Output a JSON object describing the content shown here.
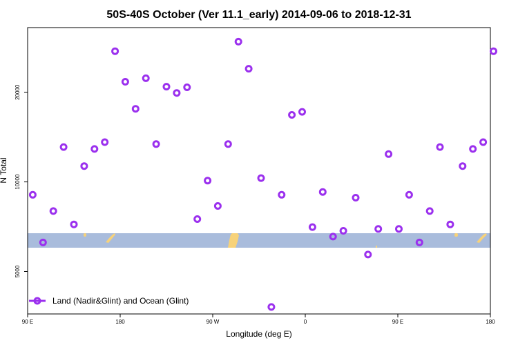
{
  "chart_data": {
    "type": "scatter",
    "title": "50S-40S October (Ver 11.1_early)   2014-09-06 to 2018-12-31",
    "xlabel": "Longitude (deg E)",
    "ylabel": "N Total",
    "x_tick_labels": [
      "90 E",
      "180",
      "90 W",
      "0",
      "90 E",
      "180"
    ],
    "y_tick_labels": [
      "5000",
      "10000",
      "20000"
    ],
    "y_scale": "log",
    "ylim": [
      3600,
      33000
    ],
    "grid": false,
    "legend_position": "bottom-left",
    "series": [
      {
        "name": "Land (Nadir&Glint) and Ocean (Glint)",
        "color": "#9b30ee",
        "points": [
          [
            95,
            9050
          ],
          [
            105,
            6260
          ],
          [
            115,
            7980
          ],
          [
            125,
            13100
          ],
          [
            135,
            7200
          ],
          [
            145,
            11300
          ],
          [
            155,
            12900
          ],
          [
            165,
            13600
          ],
          [
            175,
            27500
          ],
          [
            185,
            21700
          ],
          [
            195,
            17600
          ],
          [
            205,
            22300
          ],
          [
            215,
            13400
          ],
          [
            225,
            20900
          ],
          [
            235,
            19900
          ],
          [
            245,
            20800
          ],
          [
            255,
            7500
          ],
          [
            265,
            10100
          ],
          [
            275,
            8300
          ],
          [
            285,
            13400
          ],
          [
            295,
            29600
          ],
          [
            305,
            24000
          ],
          [
            317,
            10300
          ],
          [
            327,
            3800
          ],
          [
            337,
            9050
          ],
          [
            347,
            16800
          ],
          [
            357,
            17200
          ],
          [
            7,
            7050
          ],
          [
            17,
            9250
          ],
          [
            27,
            6550
          ],
          [
            37,
            6850
          ],
          [
            49,
            8850
          ],
          [
            61,
            5700
          ],
          [
            71,
            6950
          ],
          [
            81,
            12400
          ],
          [
            91,
            6950
          ],
          [
            101,
            9050
          ],
          [
            111,
            6260
          ],
          [
            121,
            7980
          ],
          [
            131,
            13100
          ],
          [
            141,
            7200
          ],
          [
            153,
            11300
          ],
          [
            163,
            12900
          ],
          [
            173,
            13600
          ],
          [
            183,
            27500
          ]
        ]
      }
    ],
    "colors": {
      "band": "#a9bcdc",
      "land": "#f7d27a",
      "marker": "#9b30ee"
    }
  }
}
